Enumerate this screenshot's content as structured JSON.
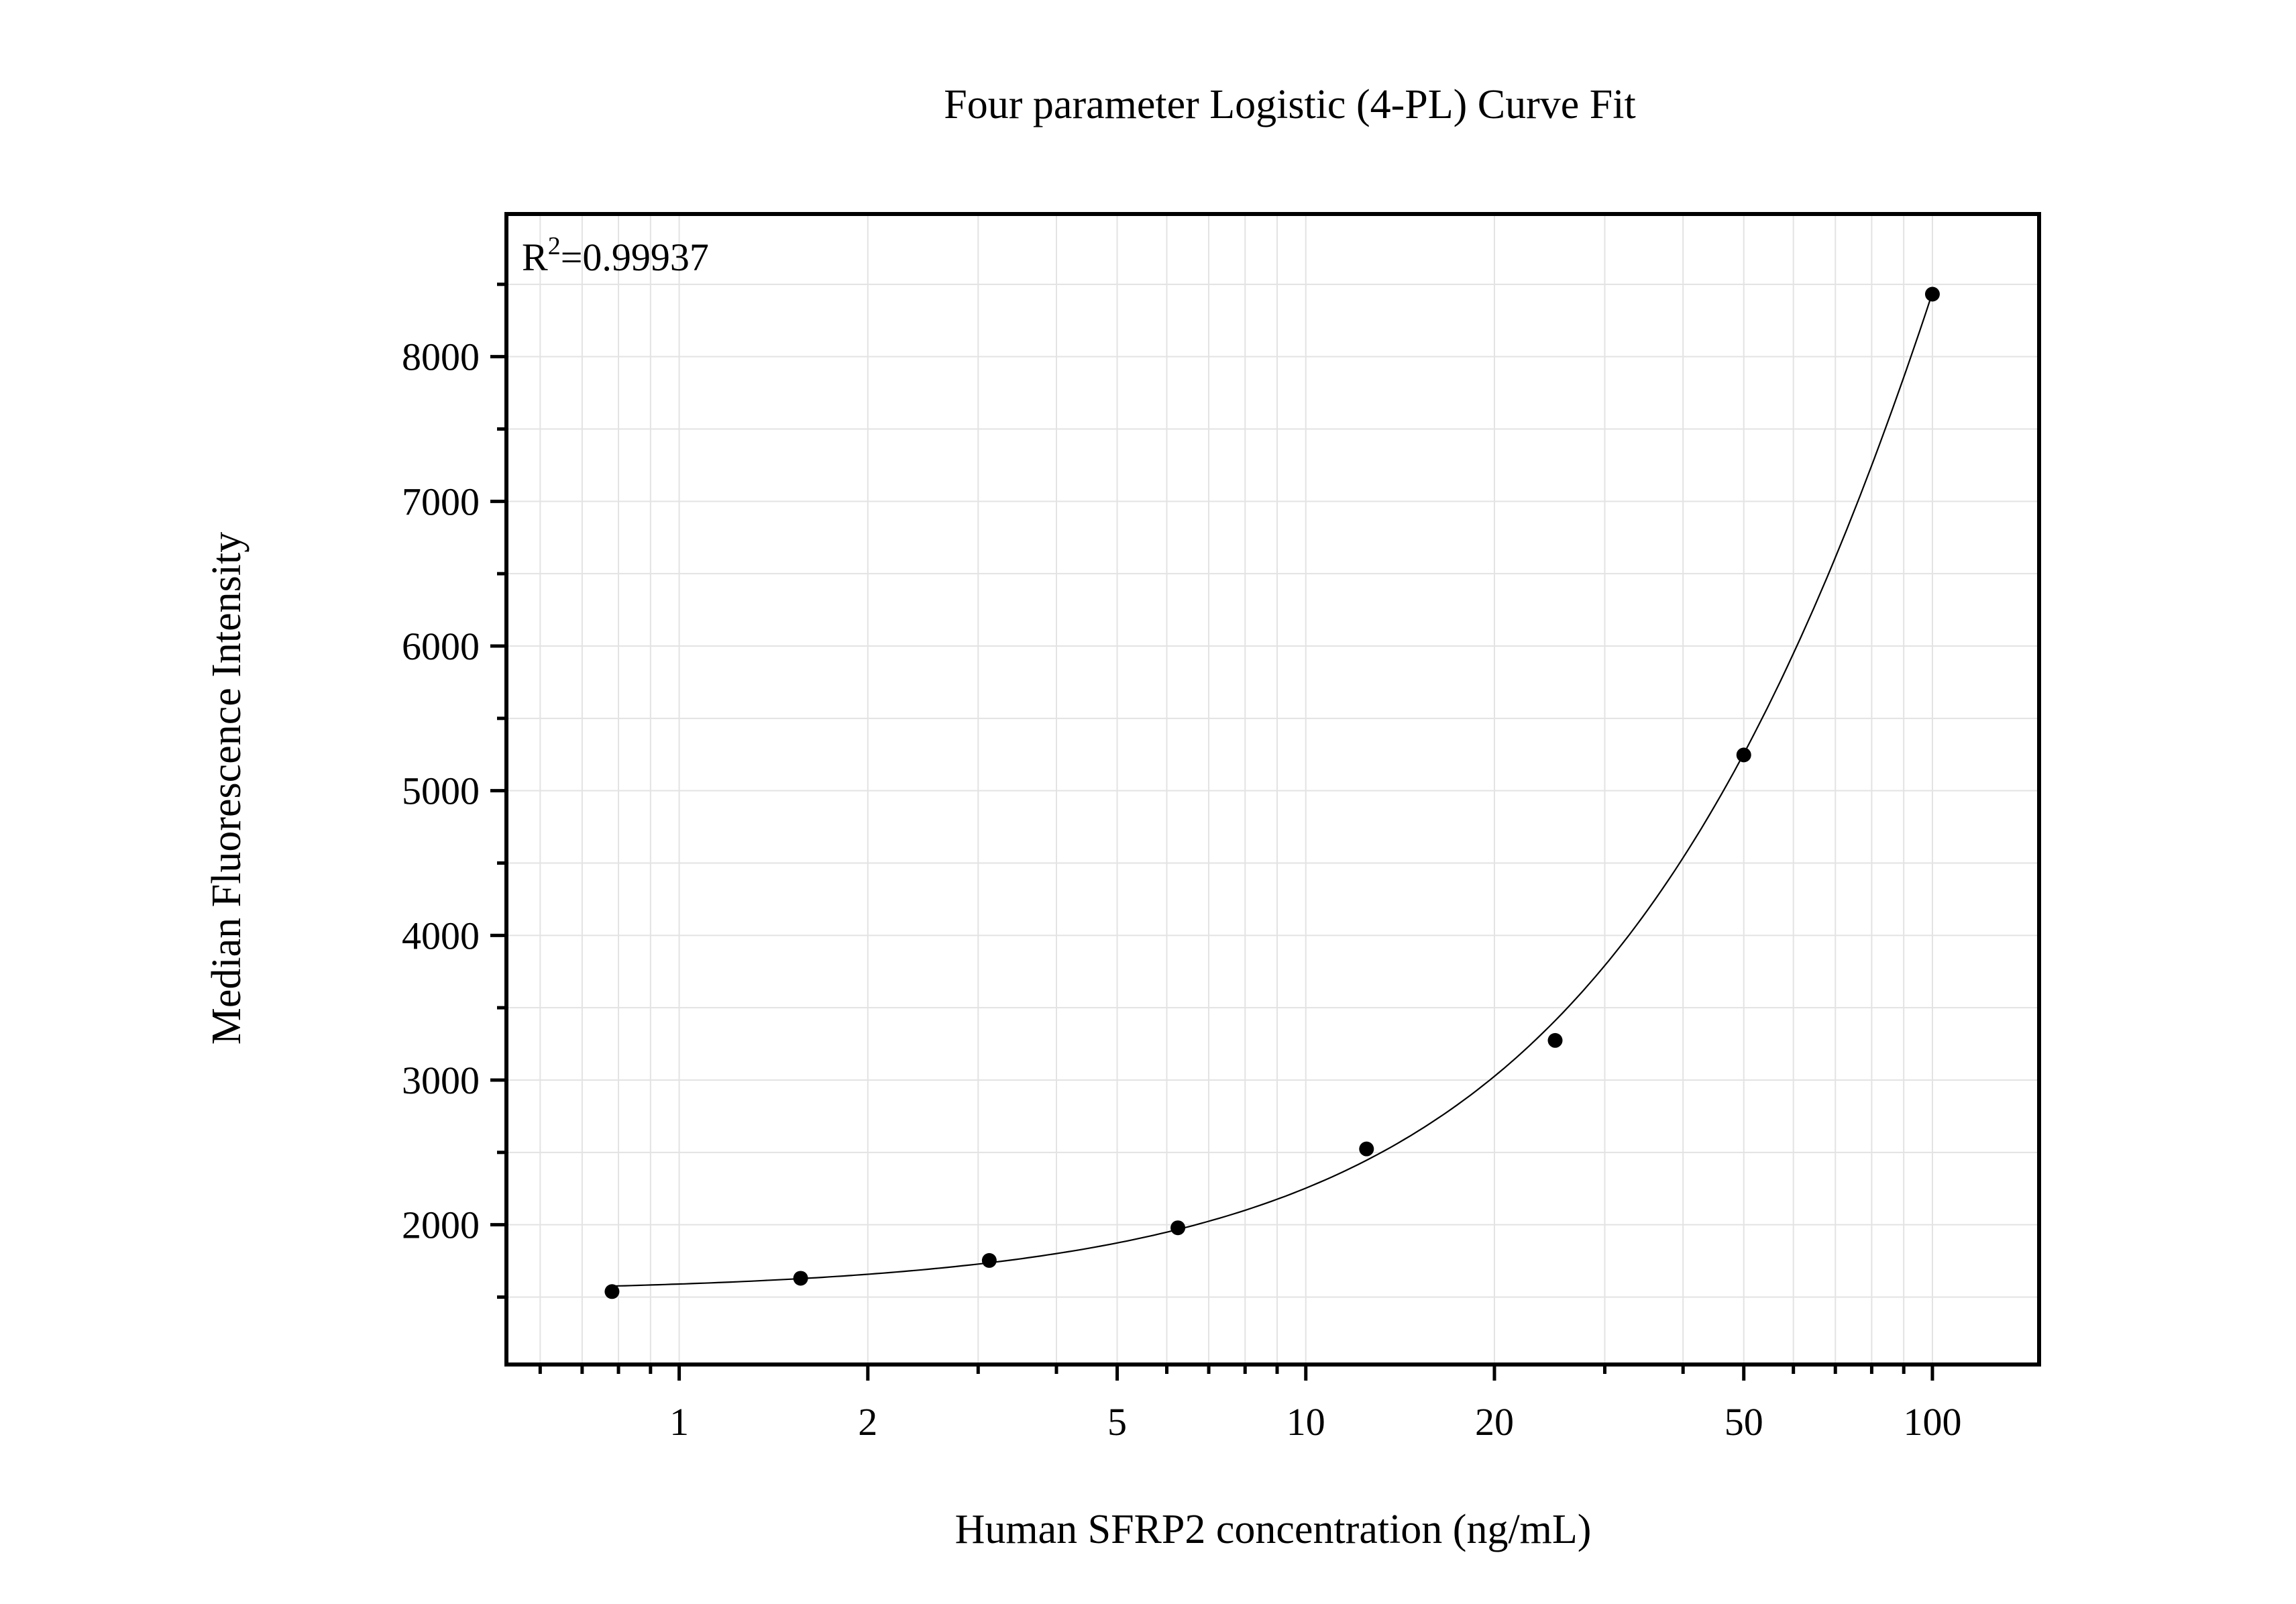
{
  "chart_data": {
    "type": "scatter",
    "title": "Four parameter Logistic (4-PL) Curve Fit",
    "xlabel": "Human SFRP2 concentration (ng/mL)",
    "ylabel": "Median Fluorescence Intensity",
    "annotation": {
      "prefix": "R",
      "sup": "2",
      "text": "=0.99937"
    },
    "x_scale": "log",
    "xlim": [
      0.53,
      148
    ],
    "ylim": [
      1034,
      8986
    ],
    "x_ticks": [
      1,
      2,
      5,
      10,
      20,
      50,
      100
    ],
    "x_tick_labels": [
      "1",
      "2",
      "5",
      "10",
      "20",
      "50",
      "100"
    ],
    "y_ticks": [
      2000,
      3000,
      4000,
      5000,
      6000,
      7000,
      8000
    ],
    "y_tick_labels": [
      "2000",
      "3000",
      "4000",
      "5000",
      "6000",
      "7000",
      "8000"
    ],
    "grid": true,
    "series": [
      {
        "x": [
          0.78125,
          1.5625,
          3.125,
          6.25,
          12.5,
          25,
          50,
          100
        ],
        "y": [
          1538,
          1630,
          1753,
          1979,
          2524,
          3274,
          5247,
          8432
        ],
        "color": "#000000"
      }
    ],
    "fit_line": {
      "model": "4-PL",
      "color": "#000000"
    }
  }
}
